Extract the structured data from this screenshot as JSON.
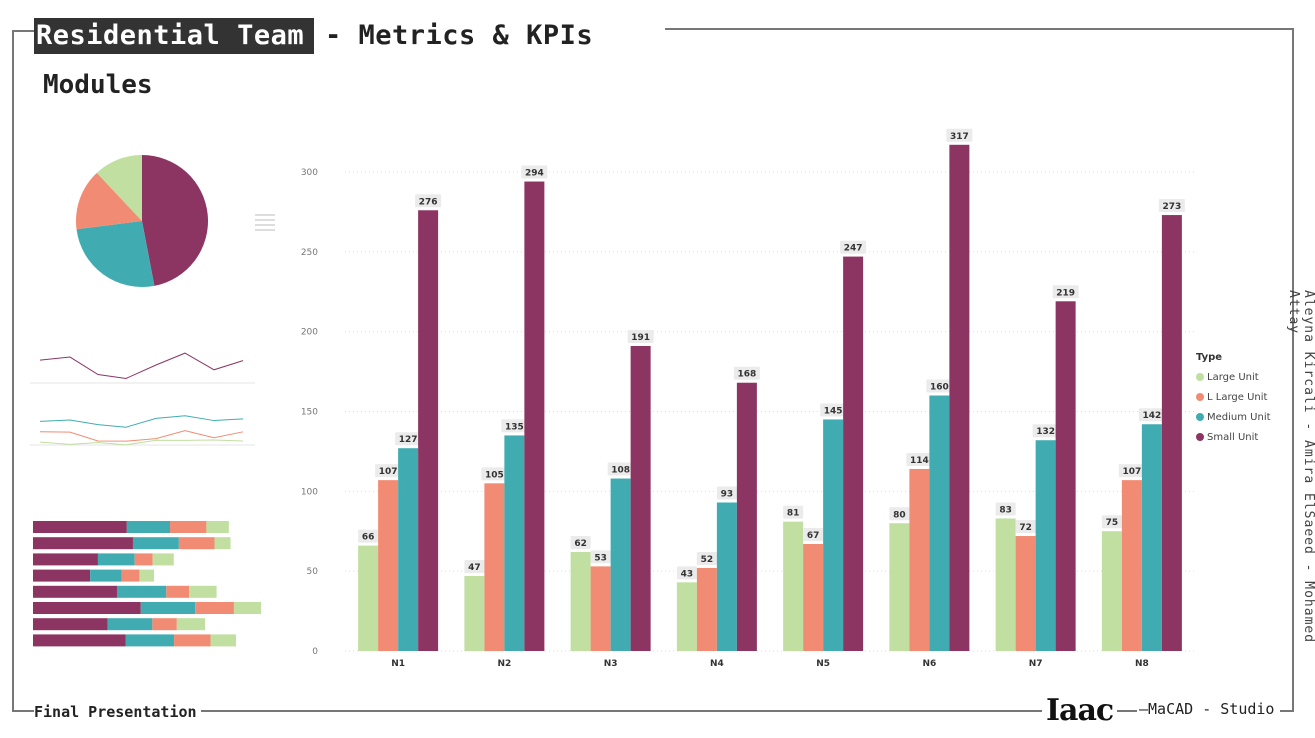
{
  "header": {
    "title_highlight": "Residential Team",
    "title_rest": "- Metrics & KPIs",
    "section": "Modules"
  },
  "footer": {
    "left": "Final Presentation",
    "logo": "Iaac",
    "right": "—MaCAD - Studio"
  },
  "authors": "Aleyna Kircali - Amira ElSaeed - Mohamed Attay",
  "colors": {
    "large": "#c0dfa0",
    "l_large": "#f28b73",
    "medium": "#40acb1",
    "small": "#8d3562"
  },
  "chart_data": {
    "type": "bar",
    "categories": [
      "N1",
      "N2",
      "N3",
      "N4",
      "N5",
      "N6",
      "N7",
      "N8"
    ],
    "ylim": [
      0,
      320
    ],
    "yticks": [
      0,
      50,
      100,
      150,
      200,
      250,
      300
    ],
    "legend_title": "Type",
    "legend_position": "right",
    "grid": true,
    "series": [
      {
        "name": "Large Unit",
        "color": "#c0dfa0",
        "values": [
          66,
          47,
          62,
          43,
          81,
          80,
          83,
          75
        ]
      },
      {
        "name": "L Large Unit",
        "color": "#f28b73",
        "values": [
          107,
          105,
          53,
          52,
          67,
          114,
          72,
          107
        ]
      },
      {
        "name": "Medium Unit",
        "color": "#40acb1",
        "values": [
          127,
          135,
          108,
          93,
          145,
          160,
          132,
          142
        ]
      },
      {
        "name": "Small Unit",
        "color": "#8d3562",
        "values": [
          276,
          294,
          191,
          168,
          247,
          317,
          219,
          273
        ]
      }
    ]
  }
}
